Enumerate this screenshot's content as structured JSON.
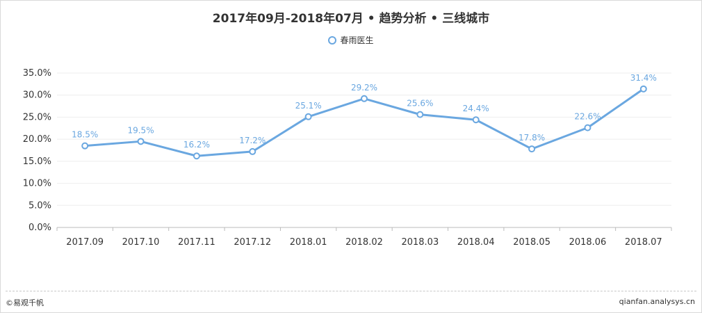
{
  "title": "2017年09月-2018年07月 • 趋势分析 • 三线城市",
  "footer": {
    "copyright": "©易观千帆",
    "site": "qianfan.analysys.cn"
  },
  "colors": {
    "line": "#6aa7e0",
    "label": "#6aa7e0",
    "axis_text": "#333333",
    "grid": "#eeeeee"
  },
  "chart_data": {
    "type": "line",
    "title": "2017年09月-2018年07月 • 趋势分析 • 三线城市",
    "categories": [
      "2017.09",
      "2017.10",
      "2017.11",
      "2017.12",
      "2018.01",
      "2018.02",
      "2018.03",
      "2018.04",
      "2018.05",
      "2018.06",
      "2018.07"
    ],
    "series": [
      {
        "name": "春雨医生",
        "values": [
          18.5,
          19.5,
          16.2,
          17.2,
          25.1,
          29.2,
          25.6,
          24.4,
          17.8,
          22.6,
          31.4
        ],
        "labels": [
          "18.5%",
          "19.5%",
          "16.2%",
          "17.2%",
          "25.1%",
          "29.2%",
          "25.6%",
          "24.4%",
          "17.8%",
          "22.6%",
          "31.4%"
        ]
      }
    ],
    "ylim": [
      0,
      35
    ],
    "yticks": [
      "0.0%",
      "5.0%",
      "10.0%",
      "15.0%",
      "20.0%",
      "25.0%",
      "30.0%",
      "35.0%"
    ],
    "ytick_values": [
      0,
      5,
      10,
      15,
      20,
      25,
      30,
      35
    ],
    "legend": "top-center",
    "grid": true
  }
}
